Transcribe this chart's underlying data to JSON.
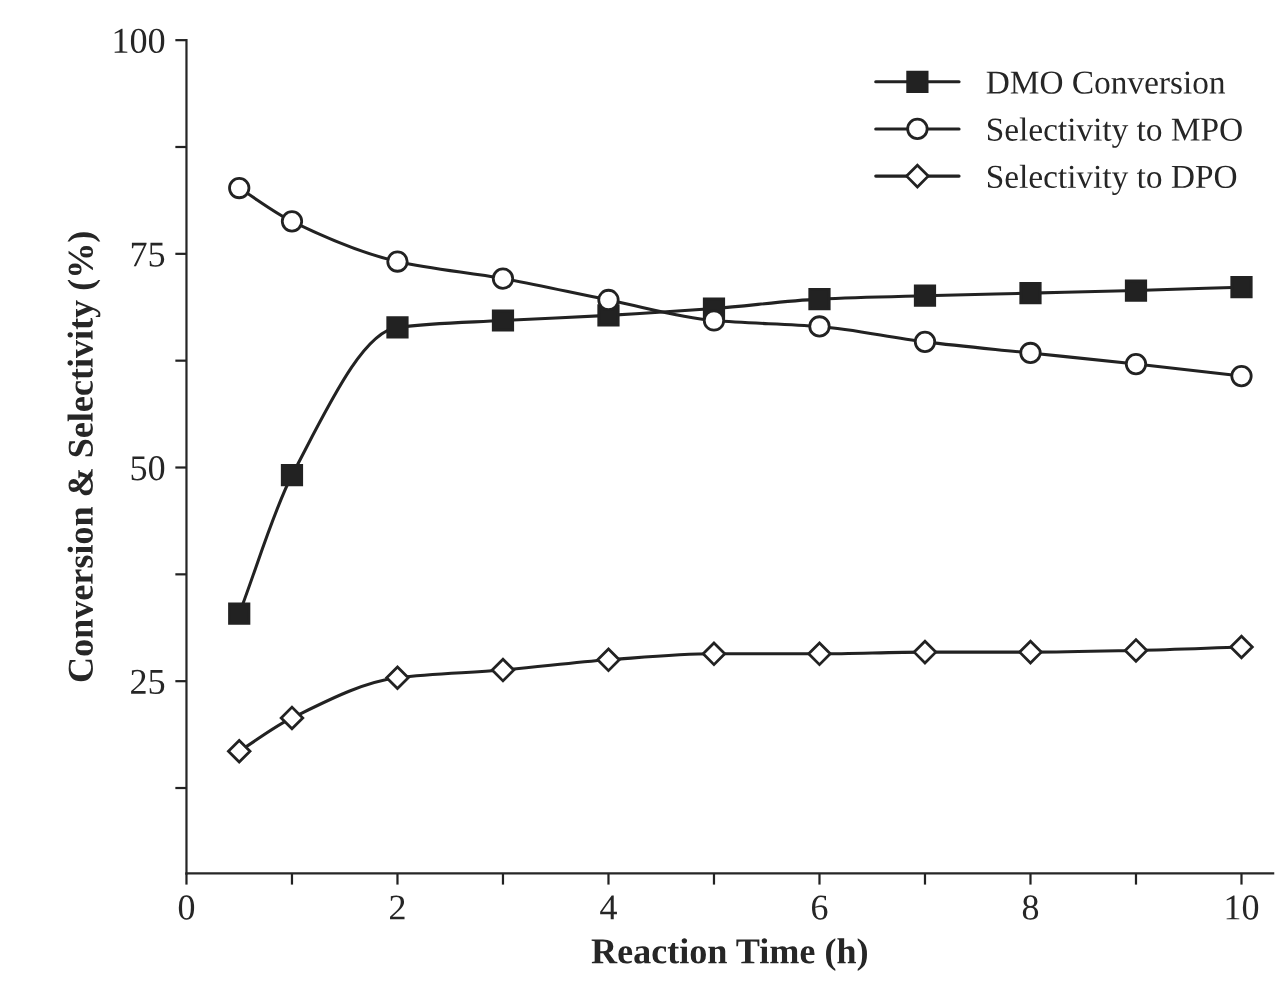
{
  "chart_data": {
    "type": "line",
    "xlabel": "Reaction Time (h)",
    "ylabel": "Conversion & Selectivity (%)",
    "x": [
      0.5,
      1,
      2,
      3,
      4,
      5,
      6,
      7,
      8,
      9,
      10
    ],
    "xlim": [
      0,
      10.3
    ],
    "xticks": [
      0,
      {
        "value": 1,
        "label": null
      },
      2,
      {
        "value": 3,
        "label": null
      },
      4,
      {
        "value": 5,
        "label": null
      },
      6,
      {
        "value": 7,
        "label": null
      },
      8,
      {
        "value": 9,
        "label": null
      },
      10
    ],
    "ylim": [
      2.5,
      100
    ],
    "yticks": [
      {
        "value": 12.5,
        "label": null
      },
      25,
      {
        "value": 37.5,
        "label": null
      },
      50,
      {
        "value": 62.5,
        "label": null
      },
      75,
      {
        "value": 87.5,
        "label": null
      },
      100
    ],
    "grid": false,
    "legend": "top right",
    "line_style": "solid",
    "series": [
      {
        "name": "DMO Conversion",
        "color": "#222222",
        "marker": "square",
        "values": [
          32.9,
          49.1,
          66.4,
          67.2,
          67.8,
          68.6,
          69.7,
          70.1,
          70.4,
          70.7,
          71.1
        ]
      },
      {
        "name": "Selectivity to MPO",
        "color": "#222222",
        "marker": "circle",
        "values": [
          82.7,
          78.8,
          74.1,
          72.1,
          69.6,
          67.2,
          66.5,
          64.7,
          63.4,
          62.1,
          60.7
        ]
      },
      {
        "name": "Selectivity to DPO",
        "color": "#222222",
        "marker": "diamond",
        "values": [
          16.8,
          20.7,
          25.4,
          26.3,
          27.5,
          28.2,
          28.2,
          28.4,
          28.4,
          28.6,
          29.0
        ]
      }
    ]
  }
}
